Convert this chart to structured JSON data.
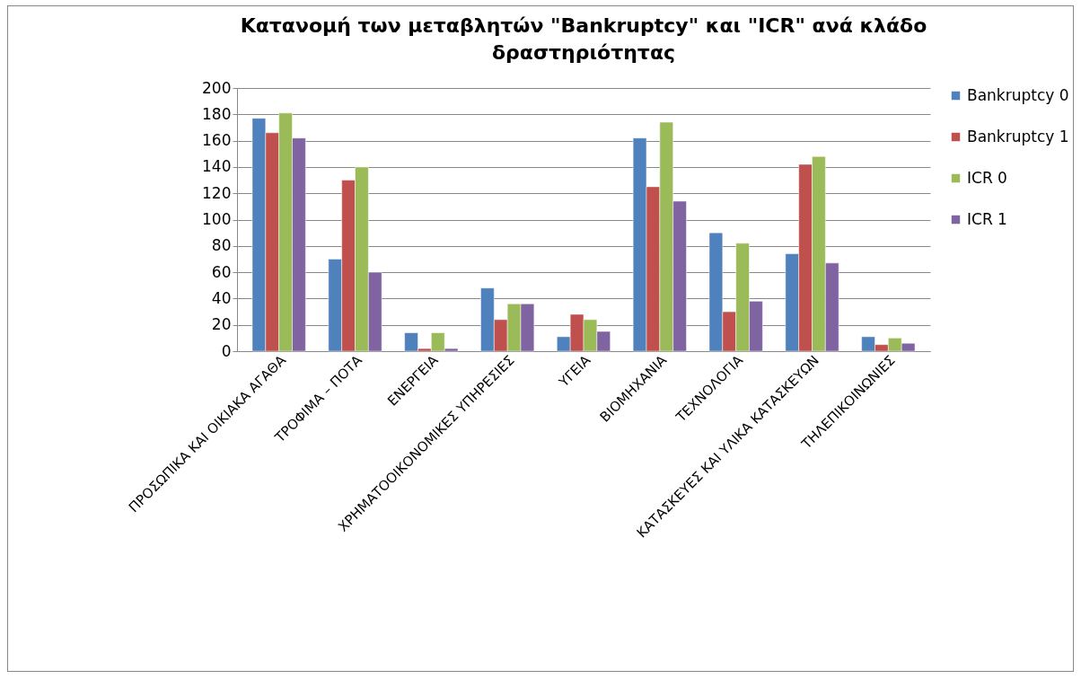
{
  "chart_data": {
    "type": "bar",
    "title": "Κατανομή των μεταβλητών \"Bankruptcy\" και \"ICR\" ανά κλάδο δραστηριότητας",
    "categories": [
      "ΠΡΟΣΩΠΙΚΑ ΚΑΙ ΟΙΚΙΑΚΑ ΑΓΑΘΑ",
      "ΤΡΟΦΙΜΑ – ΠΟΤΑ",
      "ΕΝΕΡΓΕΙΑ",
      "ΧΡΗΜΑΤΟΟΙΚΟΝΟΜΙΚΕΣ ΥΠΗΡΕΣΙΕΣ",
      "ΥΓΕΙΑ",
      "ΒΙΟΜΗΧΑΝΙΑ",
      "ΤΕΧΝΟΛΟΓΙΑ",
      "ΚΑΤΑΣΚΕΥΕΣ ΚΑΙ ΥΛΙΚΑ ΚΑΤΑΣΚΕΥΩΝ",
      "ΤΗΛΕΠΙΚΟΙΝΩΝΙΕΣ"
    ],
    "series": [
      {
        "name": "Bankruptcy 0",
        "color": "#4f81bd",
        "values": [
          177,
          70,
          14,
          48,
          11,
          162,
          90,
          74,
          11
        ]
      },
      {
        "name": "Bankruptcy 1",
        "color": "#c0504d",
        "values": [
          166,
          130,
          2,
          24,
          28,
          125,
          30,
          142,
          5
        ]
      },
      {
        "name": "ICR 0",
        "color": "#9bbb59",
        "values": [
          181,
          140,
          14,
          36,
          24,
          174,
          82,
          148,
          10
        ]
      },
      {
        "name": "ICR 1",
        "color": "#8064a2",
        "values": [
          162,
          60,
          2,
          36,
          15,
          114,
          38,
          67,
          6
        ]
      }
    ],
    "ylim": [
      0,
      200
    ],
    "yticks": [
      0,
      20,
      40,
      60,
      80,
      100,
      120,
      140,
      160,
      180,
      200
    ],
    "grid": "y",
    "legend": "right"
  }
}
